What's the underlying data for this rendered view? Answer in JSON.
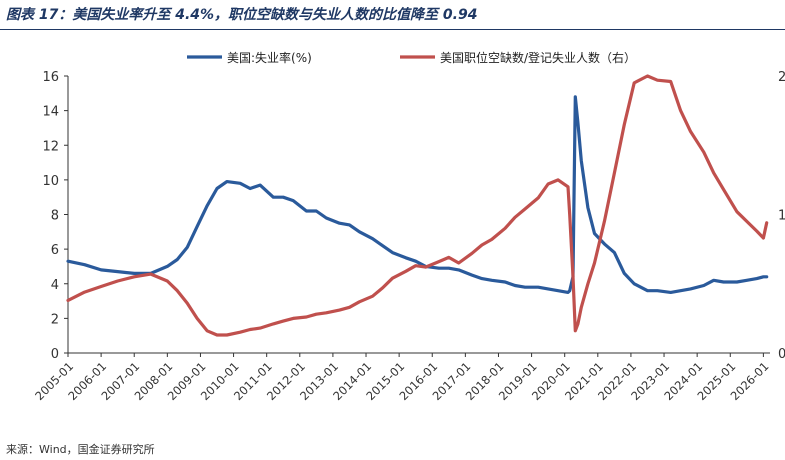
{
  "title": "图表 17：美国失业率升至 4.4%，职位空缺数与失业人数的比值降至 0.94",
  "source": "来源：Wind，国金证券研究所",
  "colors": {
    "unemployment": "#2a5a9b",
    "ratio": "#c0504d",
    "axis": "#333333",
    "title": "#1f3864"
  },
  "chart_data": {
    "type": "line",
    "legend": [
      "美国:失业率(%)",
      "美国职位空缺数/登记失业人数（右）"
    ],
    "legend_placement": "top",
    "grid": false,
    "y_left": {
      "range": [
        0,
        16
      ],
      "ticks": [
        "0",
        "2",
        "4",
        "6",
        "8",
        "10",
        "12",
        "14",
        "16"
      ]
    },
    "y_right": {
      "range": [
        0,
        2.0
      ],
      "ticks": [
        "0",
        "1",
        "2"
      ]
    },
    "x_ticks": [
      "2005-01",
      "2006-01",
      "2007-01",
      "2008-01",
      "2009-01",
      "2010-01",
      "2011-01",
      "2012-01",
      "2013-01",
      "2014-01",
      "2015-01",
      "2016-01",
      "2017-01",
      "2018-01",
      "2019-01",
      "2020-01",
      "2021-01",
      "2022-01",
      "2023-01",
      "2024-01",
      "2025-01",
      "2026-01"
    ],
    "x_range": [
      2005.0,
      2026.2
    ],
    "series": [
      {
        "name": "美国:失业率(%)",
        "axis": "left",
        "x": [
          2005.0,
          2005.5,
          2006.0,
          2006.5,
          2007.0,
          2007.5,
          2008.0,
          2008.3,
          2008.6,
          2008.9,
          2009.2,
          2009.5,
          2009.8,
          2010.2,
          2010.5,
          2010.8,
          2011.2,
          2011.5,
          2011.8,
          2012.2,
          2012.5,
          2012.8,
          2013.2,
          2013.5,
          2013.8,
          2014.2,
          2014.5,
          2014.8,
          2015.2,
          2015.5,
          2015.8,
          2016.2,
          2016.5,
          2016.8,
          2017.2,
          2017.5,
          2017.8,
          2018.2,
          2018.5,
          2018.8,
          2019.2,
          2019.5,
          2019.8,
          2020.1,
          2020.15,
          2020.25,
          2020.32,
          2020.4,
          2020.5,
          2020.7,
          2020.9,
          2021.2,
          2021.5,
          2021.8,
          2022.1,
          2022.5,
          2022.8,
          2023.2,
          2023.5,
          2023.8,
          2024.2,
          2024.5,
          2024.8,
          2025.2,
          2025.5,
          2025.8,
          2026.0,
          2026.1
        ],
        "values": [
          5.3,
          5.1,
          4.8,
          4.7,
          4.6,
          4.6,
          5.0,
          5.4,
          6.1,
          7.3,
          8.5,
          9.5,
          9.9,
          9.8,
          9.5,
          9.7,
          9.0,
          9.0,
          8.8,
          8.2,
          8.2,
          7.8,
          7.5,
          7.4,
          7.0,
          6.6,
          6.2,
          5.8,
          5.5,
          5.3,
          5.0,
          4.9,
          4.9,
          4.8,
          4.5,
          4.3,
          4.2,
          4.1,
          3.9,
          3.8,
          3.8,
          3.7,
          3.6,
          3.5,
          3.6,
          4.4,
          14.8,
          13.3,
          11.1,
          8.4,
          6.9,
          6.3,
          5.8,
          4.6,
          4.0,
          3.6,
          3.6,
          3.5,
          3.6,
          3.7,
          3.9,
          4.2,
          4.1,
          4.1,
          4.2,
          4.3,
          4.4,
          4.4
        ]
      },
      {
        "name": "美国职位空缺数/登记失业人数（右）",
        "axis": "right",
        "x": [
          2005.0,
          2005.5,
          2006.0,
          2006.5,
          2007.0,
          2007.5,
          2008.0,
          2008.3,
          2008.6,
          2008.9,
          2009.2,
          2009.5,
          2009.8,
          2010.2,
          2010.5,
          2010.8,
          2011.2,
          2011.5,
          2011.8,
          2012.2,
          2012.5,
          2012.8,
          2013.2,
          2013.5,
          2013.8,
          2014.2,
          2014.5,
          2014.8,
          2015.2,
          2015.5,
          2015.8,
          2016.2,
          2016.5,
          2016.8,
          2017.2,
          2017.5,
          2017.8,
          2018.2,
          2018.5,
          2018.8,
          2019.2,
          2019.5,
          2019.8,
          2020.1,
          2020.15,
          2020.25,
          2020.32,
          2020.4,
          2020.5,
          2020.7,
          2020.9,
          2021.2,
          2021.5,
          2021.8,
          2022.1,
          2022.5,
          2022.8,
          2023.2,
          2023.5,
          2023.8,
          2024.2,
          2024.5,
          2024.8,
          2025.2,
          2025.5,
          2025.8,
          2026.0,
          2026.1
        ],
        "values": [
          0.38,
          0.44,
          0.48,
          0.52,
          0.55,
          0.57,
          0.52,
          0.45,
          0.36,
          0.25,
          0.16,
          0.13,
          0.13,
          0.15,
          0.17,
          0.18,
          0.21,
          0.23,
          0.25,
          0.26,
          0.28,
          0.29,
          0.31,
          0.33,
          0.37,
          0.41,
          0.47,
          0.54,
          0.59,
          0.63,
          0.62,
          0.66,
          0.69,
          0.65,
          0.72,
          0.78,
          0.82,
          0.9,
          0.98,
          1.04,
          1.12,
          1.22,
          1.25,
          1.2,
          1.0,
          0.55,
          0.16,
          0.21,
          0.33,
          0.5,
          0.65,
          0.95,
          1.3,
          1.65,
          1.95,
          2.0,
          1.97,
          1.96,
          1.75,
          1.6,
          1.45,
          1.3,
          1.18,
          1.02,
          0.95,
          0.88,
          0.83,
          0.94
        ]
      }
    ]
  }
}
